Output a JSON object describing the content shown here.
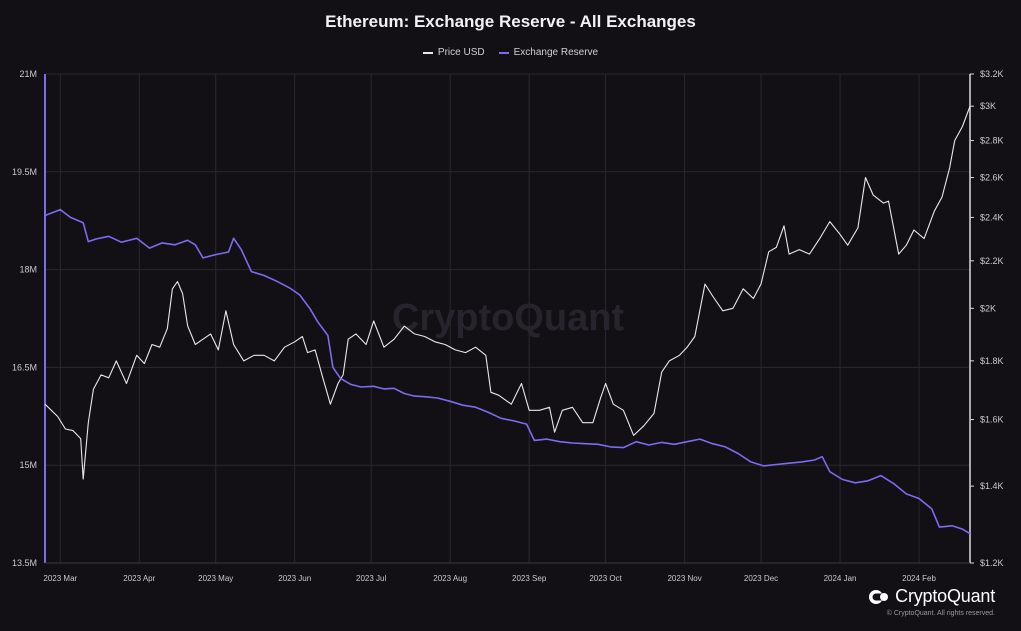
{
  "chart_data": {
    "type": "line",
    "title": "Ethereum: Exchange Reserve - All Exchanges",
    "watermark": "CryptoQuant",
    "x_ticks": [
      "2023 Mar",
      "2023 Apr",
      "2023 May",
      "2023 Jun",
      "2023 Jul",
      "2023 Aug",
      "2023 Sep",
      "2023 Oct",
      "2023 Nov",
      "2023 Dec",
      "2024 Jan",
      "2024 Feb"
    ],
    "x_range": [
      "2023-02-23",
      "2024-02-21"
    ],
    "y_left": {
      "ticks": [
        "21M",
        "19.5M",
        "18M",
        "16.5M",
        "15M",
        "13.5M"
      ],
      "range": [
        13500000,
        21000000
      ]
    },
    "y_right": {
      "ticks": [
        "$3.2K",
        "$3K",
        "$2.8K",
        "$2.6K",
        "$2.4K",
        "$2.2K",
        "$2K",
        "$1.8K",
        "$1.6K",
        "$1.4K",
        "$1.2K"
      ],
      "range": [
        1200,
        3200
      ],
      "scale": "log"
    },
    "grid": true,
    "legend_position": "top-center",
    "series": [
      {
        "name": "Price USD",
        "axis": "right",
        "color": "#e8e8ec",
        "points": [
          [
            "2023-02-23",
            1650
          ],
          [
            "2023-02-28",
            1610
          ],
          [
            "2023-03-03",
            1570
          ],
          [
            "2023-03-06",
            1565
          ],
          [
            "2023-03-09",
            1540
          ],
          [
            "2023-03-10",
            1420
          ],
          [
            "2023-03-12",
            1590
          ],
          [
            "2023-03-14",
            1700
          ],
          [
            "2023-03-17",
            1750
          ],
          [
            "2023-03-20",
            1740
          ],
          [
            "2023-03-23",
            1800
          ],
          [
            "2023-03-27",
            1720
          ],
          [
            "2023-03-31",
            1820
          ],
          [
            "2023-04-03",
            1790
          ],
          [
            "2023-04-06",
            1860
          ],
          [
            "2023-04-09",
            1850
          ],
          [
            "2023-04-12",
            1920
          ],
          [
            "2023-04-14",
            2080
          ],
          [
            "2023-04-16",
            2110
          ],
          [
            "2023-04-18",
            2060
          ],
          [
            "2023-04-20",
            1930
          ],
          [
            "2023-04-23",
            1860
          ],
          [
            "2023-04-26",
            1880
          ],
          [
            "2023-04-29",
            1900
          ],
          [
            "2023-05-02",
            1840
          ],
          [
            "2023-05-05",
            1990
          ],
          [
            "2023-05-08",
            1860
          ],
          [
            "2023-05-12",
            1800
          ],
          [
            "2023-05-16",
            1820
          ],
          [
            "2023-05-20",
            1820
          ],
          [
            "2023-05-24",
            1800
          ],
          [
            "2023-05-28",
            1850
          ],
          [
            "2023-06-01",
            1870
          ],
          [
            "2023-06-04",
            1890
          ],
          [
            "2023-06-06",
            1830
          ],
          [
            "2023-06-09",
            1840
          ],
          [
            "2023-06-12",
            1740
          ],
          [
            "2023-06-15",
            1650
          ],
          [
            "2023-06-18",
            1720
          ],
          [
            "2023-06-20",
            1750
          ],
          [
            "2023-06-22",
            1880
          ],
          [
            "2023-06-25",
            1900
          ],
          [
            "2023-06-29",
            1860
          ],
          [
            "2023-07-02",
            1950
          ],
          [
            "2023-07-06",
            1850
          ],
          [
            "2023-07-10",
            1880
          ],
          [
            "2023-07-14",
            1930
          ],
          [
            "2023-07-18",
            1900
          ],
          [
            "2023-07-22",
            1890
          ],
          [
            "2023-07-26",
            1870
          ],
          [
            "2023-07-30",
            1860
          ],
          [
            "2023-08-03",
            1840
          ],
          [
            "2023-08-07",
            1830
          ],
          [
            "2023-08-11",
            1850
          ],
          [
            "2023-08-15",
            1820
          ],
          [
            "2023-08-17",
            1690
          ],
          [
            "2023-08-20",
            1680
          ],
          [
            "2023-08-25",
            1650
          ],
          [
            "2023-08-29",
            1720
          ],
          [
            "2023-09-01",
            1630
          ],
          [
            "2023-09-05",
            1630
          ],
          [
            "2023-09-09",
            1640
          ],
          [
            "2023-09-11",
            1560
          ],
          [
            "2023-09-14",
            1630
          ],
          [
            "2023-09-18",
            1640
          ],
          [
            "2023-09-22",
            1590
          ],
          [
            "2023-09-26",
            1590
          ],
          [
            "2023-09-29",
            1670
          ],
          [
            "2023-10-01",
            1720
          ],
          [
            "2023-10-04",
            1650
          ],
          [
            "2023-10-08",
            1630
          ],
          [
            "2023-10-12",
            1550
          ],
          [
            "2023-10-16",
            1580
          ],
          [
            "2023-10-20",
            1620
          ],
          [
            "2023-10-23",
            1760
          ],
          [
            "2023-10-26",
            1800
          ],
          [
            "2023-10-30",
            1820
          ],
          [
            "2023-11-02",
            1850
          ],
          [
            "2023-11-05",
            1890
          ],
          [
            "2023-11-09",
            2100
          ],
          [
            "2023-11-12",
            2050
          ],
          [
            "2023-11-16",
            1990
          ],
          [
            "2023-11-20",
            2000
          ],
          [
            "2023-11-24",
            2080
          ],
          [
            "2023-11-28",
            2040
          ],
          [
            "2023-12-01",
            2100
          ],
          [
            "2023-12-04",
            2240
          ],
          [
            "2023-12-07",
            2260
          ],
          [
            "2023-12-10",
            2360
          ],
          [
            "2023-12-12",
            2230
          ],
          [
            "2023-12-16",
            2250
          ],
          [
            "2023-12-20",
            2230
          ],
          [
            "2023-12-24",
            2300
          ],
          [
            "2023-12-28",
            2380
          ],
          [
            "2024-01-01",
            2320
          ],
          [
            "2024-01-04",
            2270
          ],
          [
            "2024-01-08",
            2350
          ],
          [
            "2024-01-11",
            2600
          ],
          [
            "2024-01-14",
            2510
          ],
          [
            "2024-01-18",
            2470
          ],
          [
            "2024-01-20",
            2480
          ],
          [
            "2024-01-24",
            2230
          ],
          [
            "2024-01-27",
            2270
          ],
          [
            "2024-01-30",
            2340
          ],
          [
            "2024-02-03",
            2300
          ],
          [
            "2024-02-07",
            2430
          ],
          [
            "2024-02-10",
            2500
          ],
          [
            "2024-02-13",
            2650
          ],
          [
            "2024-02-15",
            2800
          ],
          [
            "2024-02-18",
            2880
          ],
          [
            "2024-02-21",
            3000
          ]
        ]
      },
      {
        "name": "Exchange Reserve",
        "axis": "left",
        "color": "#7b6cf0",
        "points": [
          [
            "2023-02-23",
            18830000
          ],
          [
            "2023-03-01",
            18920000
          ],
          [
            "2023-03-05",
            18800000
          ],
          [
            "2023-03-10",
            18720000
          ],
          [
            "2023-03-12",
            18430000
          ],
          [
            "2023-03-15",
            18470000
          ],
          [
            "2023-03-20",
            18510000
          ],
          [
            "2023-03-25",
            18420000
          ],
          [
            "2023-03-31",
            18480000
          ],
          [
            "2023-04-05",
            18330000
          ],
          [
            "2023-04-10",
            18410000
          ],
          [
            "2023-04-15",
            18380000
          ],
          [
            "2023-04-20",
            18450000
          ],
          [
            "2023-04-23",
            18380000
          ],
          [
            "2023-04-26",
            18180000
          ],
          [
            "2023-05-01",
            18230000
          ],
          [
            "2023-05-06",
            18270000
          ],
          [
            "2023-05-08",
            18480000
          ],
          [
            "2023-05-11",
            18310000
          ],
          [
            "2023-05-15",
            17970000
          ],
          [
            "2023-05-20",
            17910000
          ],
          [
            "2023-05-25",
            17820000
          ],
          [
            "2023-05-30",
            17720000
          ],
          [
            "2023-06-03",
            17610000
          ],
          [
            "2023-06-07",
            17400000
          ],
          [
            "2023-06-10",
            17200000
          ],
          [
            "2023-06-14",
            16990000
          ],
          [
            "2023-06-16",
            16500000
          ],
          [
            "2023-06-19",
            16330000
          ],
          [
            "2023-06-23",
            16240000
          ],
          [
            "2023-06-27",
            16200000
          ],
          [
            "2023-07-02",
            16210000
          ],
          [
            "2023-07-06",
            16170000
          ],
          [
            "2023-07-10",
            16180000
          ],
          [
            "2023-07-14",
            16100000
          ],
          [
            "2023-07-18",
            16060000
          ],
          [
            "2023-07-22",
            16050000
          ],
          [
            "2023-07-27",
            16030000
          ],
          [
            "2023-08-01",
            15980000
          ],
          [
            "2023-08-06",
            15920000
          ],
          [
            "2023-08-11",
            15890000
          ],
          [
            "2023-08-16",
            15810000
          ],
          [
            "2023-08-21",
            15720000
          ],
          [
            "2023-08-26",
            15680000
          ],
          [
            "2023-08-31",
            15630000
          ],
          [
            "2023-09-03",
            15380000
          ],
          [
            "2023-09-08",
            15400000
          ],
          [
            "2023-09-13",
            15360000
          ],
          [
            "2023-09-18",
            15340000
          ],
          [
            "2023-09-23",
            15330000
          ],
          [
            "2023-09-28",
            15320000
          ],
          [
            "2023-10-03",
            15280000
          ],
          [
            "2023-10-08",
            15270000
          ],
          [
            "2023-10-13",
            15360000
          ],
          [
            "2023-10-18",
            15310000
          ],
          [
            "2023-10-23",
            15350000
          ],
          [
            "2023-10-28",
            15320000
          ],
          [
            "2023-11-02",
            15360000
          ],
          [
            "2023-11-07",
            15400000
          ],
          [
            "2023-11-12",
            15330000
          ],
          [
            "2023-11-17",
            15280000
          ],
          [
            "2023-11-22",
            15180000
          ],
          [
            "2023-11-27",
            15050000
          ],
          [
            "2023-12-02",
            14990000
          ],
          [
            "2023-12-07",
            15010000
          ],
          [
            "2023-12-12",
            15030000
          ],
          [
            "2023-12-17",
            15050000
          ],
          [
            "2023-12-22",
            15080000
          ],
          [
            "2023-12-25",
            15130000
          ],
          [
            "2023-12-28",
            14900000
          ],
          [
            "2024-01-02",
            14780000
          ],
          [
            "2024-01-07",
            14730000
          ],
          [
            "2024-01-12",
            14760000
          ],
          [
            "2024-01-17",
            14840000
          ],
          [
            "2024-01-22",
            14720000
          ],
          [
            "2024-01-27",
            14560000
          ],
          [
            "2024-02-01",
            14490000
          ],
          [
            "2024-02-06",
            14330000
          ],
          [
            "2024-02-09",
            14050000
          ],
          [
            "2024-02-14",
            14070000
          ],
          [
            "2024-02-18",
            14020000
          ],
          [
            "2024-02-21",
            13950000
          ]
        ]
      }
    ]
  },
  "brand": {
    "name": "CryptoQuant",
    "copyright": "© CryptoQuant. All rights reserved."
  },
  "colors": {
    "background": "#121015",
    "grid": "#2a2830",
    "price": "#e8e8ec",
    "reserve": "#7b6cf0"
  }
}
